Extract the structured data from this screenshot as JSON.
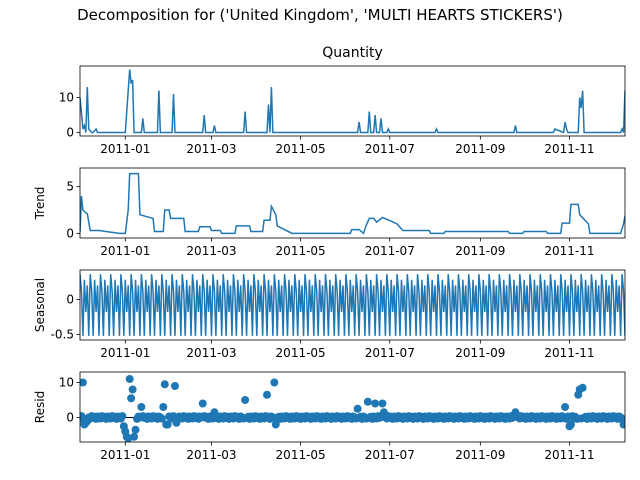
{
  "figure": {
    "suptitle": "Decomposition for ('United Kingdom', 'MULTI HEARTS  STICKERS')"
  },
  "colors": {
    "series": "#1f77b4",
    "axis": "#000000",
    "zero_line": "#000000"
  },
  "chart_data": [
    {
      "type": "line",
      "title": "Quantity",
      "ylabel": "",
      "xlim": [
        "2010-12-01",
        "2011-12-09"
      ],
      "ylim": [
        -1,
        19
      ],
      "yticks": [
        0,
        10
      ],
      "xticks": [
        "2011-01",
        "2011-03",
        "2011-05",
        "2011-07",
        "2011-09",
        "2011-11"
      ],
      "x": [
        "2010-12-01",
        "2010-12-03",
        "2010-12-04",
        "2010-12-05",
        "2010-12-06",
        "2010-12-07",
        "2010-12-09",
        "2010-12-10",
        "2010-12-12",
        "2010-12-13",
        "2010-12-14",
        "2011-01-01",
        "2011-01-04",
        "2011-01-05",
        "2011-01-06",
        "2011-01-07",
        "2011-01-08",
        "2011-01-12",
        "2011-01-13",
        "2011-01-14",
        "2011-01-23",
        "2011-01-24",
        "2011-01-25",
        "2011-02-02",
        "2011-02-03",
        "2011-02-04",
        "2011-02-23",
        "2011-02-24",
        "2011-02-25",
        "2011-03-02",
        "2011-03-03",
        "2011-03-04",
        "2011-03-23",
        "2011-03-24",
        "2011-03-25",
        "2011-04-08",
        "2011-04-09",
        "2011-04-10",
        "2011-04-11",
        "2011-04-12",
        "2011-04-13",
        "2011-06-09",
        "2011-06-10",
        "2011-06-11",
        "2011-06-16",
        "2011-06-17",
        "2011-06-18",
        "2011-06-20",
        "2011-06-21",
        "2011-06-22",
        "2011-06-24",
        "2011-06-25",
        "2011-06-26",
        "2011-06-29",
        "2011-06-30",
        "2011-07-01",
        "2011-08-01",
        "2011-08-02",
        "2011-08-03",
        "2011-09-24",
        "2011-09-25",
        "2011-09-26",
        "2011-10-21",
        "2011-10-22",
        "2011-10-28",
        "2011-10-29",
        "2011-10-30",
        "2011-10-31",
        "2011-11-01",
        "2011-11-07",
        "2011-11-08",
        "2011-11-09",
        "2011-11-10",
        "2011-11-11",
        "2011-12-06",
        "2011-12-07",
        "2011-12-08",
        "2011-12-09"
      ],
      "values": [
        10,
        1,
        2,
        0,
        13,
        1,
        0,
        0,
        1,
        0,
        0,
        0,
        18,
        14,
        15,
        0,
        0,
        0,
        4,
        0,
        0,
        12,
        0,
        0,
        11,
        0,
        0,
        5,
        0,
        0,
        2,
        0,
        0,
        6,
        0,
        0,
        8,
        0,
        13,
        0,
        0,
        0,
        3,
        0,
        0,
        6,
        0,
        0,
        5,
        0,
        0,
        4,
        0,
        0,
        1,
        0,
        0,
        1,
        0,
        0,
        2,
        0,
        0,
        1,
        0,
        3,
        1,
        0,
        0,
        0,
        10,
        7,
        12,
        0,
        0,
        1,
        0,
        12
      ]
    },
    {
      "type": "line",
      "title": "",
      "ylabel": "Trend",
      "xlim": [
        "2010-12-01",
        "2011-12-09"
      ],
      "ylim": [
        -0.5,
        7
      ],
      "yticks": [
        0,
        5
      ],
      "xticks": [
        "2011-01",
        "2011-03",
        "2011-05",
        "2011-07",
        "2011-09",
        "2011-11"
      ],
      "x": [
        "2010-12-01",
        "2010-12-02",
        "2010-12-03",
        "2010-12-05",
        "2010-12-06",
        "2010-12-08",
        "2010-12-14",
        "2010-12-28",
        "2011-01-01",
        "2011-01-03",
        "2011-01-04",
        "2011-01-10",
        "2011-01-11",
        "2011-01-20",
        "2011-01-21",
        "2011-01-27",
        "2011-01-28",
        "2011-01-31",
        "2011-02-01",
        "2011-02-10",
        "2011-02-11",
        "2011-02-20",
        "2011-02-21",
        "2011-02-28",
        "2011-03-01",
        "2011-03-07",
        "2011-03-08",
        "2011-03-17",
        "2011-03-18",
        "2011-03-27",
        "2011-03-28",
        "2011-04-05",
        "2011-04-06",
        "2011-04-10",
        "2011-04-11",
        "2011-04-14",
        "2011-04-15",
        "2011-04-25",
        "2011-06-04",
        "2011-06-05",
        "2011-06-10",
        "2011-06-13",
        "2011-06-15",
        "2011-06-17",
        "2011-06-20",
        "2011-06-22",
        "2011-06-26",
        "2011-07-02",
        "2011-07-06",
        "2011-07-10",
        "2011-07-28",
        "2011-07-29",
        "2011-08-07",
        "2011-08-08",
        "2011-09-20",
        "2011-09-21",
        "2011-09-30",
        "2011-10-01",
        "2011-10-16",
        "2011-10-17",
        "2011-10-26",
        "2011-10-27",
        "2011-11-01",
        "2011-11-02",
        "2011-11-07",
        "2011-11-08",
        "2011-11-14",
        "2011-11-15",
        "2011-12-06",
        "2011-12-08",
        "2011-12-09"
      ],
      "values": [
        0.1,
        4.0,
        2.5,
        2.2,
        2.1,
        0.3,
        0.3,
        0.0,
        0.0,
        2.5,
        6.4,
        6.4,
        2.0,
        1.6,
        0.2,
        0.2,
        2.5,
        2.5,
        1.6,
        1.6,
        0.2,
        0.2,
        0.7,
        0.7,
        0.3,
        0.3,
        0.0,
        0.0,
        0.8,
        0.8,
        0.2,
        0.2,
        1.4,
        1.4,
        2.9,
        2.0,
        0.8,
        0.0,
        0.0,
        0.4,
        0.4,
        0.0,
        0.9,
        1.6,
        1.6,
        1.2,
        1.7,
        1.3,
        1.0,
        0.3,
        0.3,
        0.0,
        0.0,
        0.2,
        0.2,
        0.0,
        0.0,
        0.2,
        0.2,
        0.0,
        0.0,
        1.1,
        1.1,
        3.1,
        3.1,
        2.0,
        1.0,
        0.0,
        0.0,
        1.0,
        1.9
      ]
    },
    {
      "type": "line",
      "title": "",
      "ylabel": "Seasonal",
      "xlim": [
        "2010-12-01",
        "2011-12-09"
      ],
      "ylim": [
        -0.58,
        0.42
      ],
      "yticks": [
        -0.5,
        0.0
      ],
      "xticks": [
        "2011-01",
        "2011-03",
        "2011-05",
        "2011-07",
        "2011-09",
        "2011-11"
      ],
      "x_start": "2010-12-01",
      "x_end": "2011-12-09",
      "weekly_pattern": [
        0.36,
        0.12,
        -0.52,
        0.28,
        -0.18,
        0.2,
        -0.52
      ]
    },
    {
      "type": "scatter",
      "title": "",
      "ylabel": "Resid",
      "xlim": [
        "2010-12-01",
        "2011-12-09"
      ],
      "ylim": [
        -7,
        13
      ],
      "yticks": [
        0,
        10
      ],
      "xticks": [
        "2011-01",
        "2011-03",
        "2011-05",
        "2011-07",
        "2011-09",
        "2011-11"
      ],
      "baseline": 0,
      "x_start": "2010-12-01",
      "x_end": "2011-12-09",
      "default_resid": [
        -0.3,
        0.4,
        -0.1,
        0.2,
        -0.4,
        0.3,
        0.0
      ],
      "outliers": [
        {
          "x": "2010-12-03",
          "y": 10
        },
        {
          "x": "2010-12-04",
          "y": -2
        },
        {
          "x": "2010-12-05",
          "y": -1.5
        },
        {
          "x": "2010-12-06",
          "y": -1
        },
        {
          "x": "2010-12-31",
          "y": -2.5
        },
        {
          "x": "2011-01-01",
          "y": -4
        },
        {
          "x": "2011-01-02",
          "y": -5.5
        },
        {
          "x": "2011-01-03",
          "y": -6
        },
        {
          "x": "2011-01-04",
          "y": 11
        },
        {
          "x": "2011-01-05",
          "y": 5.5
        },
        {
          "x": "2011-01-06",
          "y": 8
        },
        {
          "x": "2011-01-07",
          "y": -5.5
        },
        {
          "x": "2011-01-08",
          "y": -3.5
        },
        {
          "x": "2011-01-12",
          "y": 3
        },
        {
          "x": "2011-01-27",
          "y": 3
        },
        {
          "x": "2011-01-28",
          "y": 9.5
        },
        {
          "x": "2011-01-29",
          "y": -2
        },
        {
          "x": "2011-01-30",
          "y": -2
        },
        {
          "x": "2011-02-04",
          "y": 9
        },
        {
          "x": "2011-02-05",
          "y": -1.5
        },
        {
          "x": "2011-02-23",
          "y": 4
        },
        {
          "x": "2011-03-03",
          "y": 1.5
        },
        {
          "x": "2011-03-24",
          "y": 5
        },
        {
          "x": "2011-04-08",
          "y": 6.5
        },
        {
          "x": "2011-04-13",
          "y": 10
        },
        {
          "x": "2011-04-14",
          "y": -2
        },
        {
          "x": "2011-06-09",
          "y": 2.5
        },
        {
          "x": "2011-06-16",
          "y": 4.5
        },
        {
          "x": "2011-06-21",
          "y": 4
        },
        {
          "x": "2011-06-26",
          "y": 4
        },
        {
          "x": "2011-06-27",
          "y": 1.5
        },
        {
          "x": "2011-09-25",
          "y": 1.5
        },
        {
          "x": "2011-10-29",
          "y": 3
        },
        {
          "x": "2011-11-01",
          "y": -2.5
        },
        {
          "x": "2011-11-02",
          "y": -2
        },
        {
          "x": "2011-11-07",
          "y": 6.5
        },
        {
          "x": "2011-11-08",
          "y": 8
        },
        {
          "x": "2011-11-10",
          "y": 8.5
        },
        {
          "x": "2011-12-08",
          "y": -2
        },
        {
          "x": "2011-12-09",
          "y": -1.5
        }
      ]
    }
  ]
}
